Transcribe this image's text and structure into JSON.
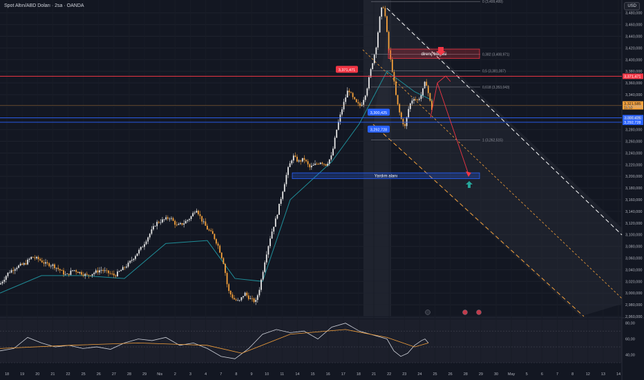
{
  "header": {
    "symbol_title": "Spot Altın/ABD Doları · 2sa · OANDA",
    "currency": "USD"
  },
  "colors": {
    "background": "#131722",
    "candle_up": "#e8e8e8",
    "candle_down": "#f7a23b",
    "ma_line": "#1f8f9a",
    "resistance_line": "#f23645",
    "support_line": "#2962ff",
    "fib_line": "#787b86",
    "rsi_line": "#d1d4dc",
    "rsi_ma": "#f7a23b"
  },
  "chart_data": {
    "type": "candlestick",
    "instrument": "Spot Altın/ABD Doları",
    "timeframe": "2sa",
    "x_tick_labels": [
      "18",
      "19",
      "20",
      "21",
      "22",
      "25",
      "26",
      "27",
      "28",
      "29",
      "Nis",
      "2",
      "3",
      "4",
      "7",
      "8",
      "9",
      "10",
      "11",
      "14",
      "15",
      "16",
      "17",
      "18",
      "21",
      "22",
      "23",
      "24",
      "25",
      "26",
      "28",
      "29",
      "30",
      "May",
      "5",
      "6",
      "7",
      "8",
      "12",
      "13",
      "14"
    ],
    "y_tick_labels": [
      "3,480,000",
      "3,460,000",
      "3,440,000",
      "3,420,000",
      "3,400,000",
      "3,380,000",
      "3,360,000",
      "3,340,000",
      "3,320,000",
      "3,300,000",
      "3,280,000",
      "3,260,000",
      "3,240,000",
      "3,220,000",
      "3,200,000",
      "3,180,000",
      "3,160,000",
      "3,140,000",
      "3,120,000",
      "3,100,000",
      "3,080,000",
      "3,060,000",
      "3,040,000",
      "3,020,000",
      "3,000,000",
      "2,980,000",
      "2,960,000"
    ],
    "ylim": [
      2960,
      3495
    ],
    "price_path": [
      [
        0,
        3015
      ],
      [
        12,
        3035
      ],
      [
        24,
        3045
      ],
      [
        36,
        3050
      ],
      [
        46,
        3062
      ],
      [
        56,
        3058
      ],
      [
        66,
        3050
      ],
      [
        76,
        3048
      ],
      [
        86,
        3040
      ],
      [
        96,
        3030
      ],
      [
        106,
        3040
      ],
      [
        116,
        3035
      ],
      [
        126,
        3030
      ],
      [
        136,
        3035
      ],
      [
        146,
        3040
      ],
      [
        156,
        3035
      ],
      [
        166,
        3030
      ],
      [
        176,
        3040
      ],
      [
        186,
        3050
      ],
      [
        196,
        3065
      ],
      [
        206,
        3080
      ],
      [
        216,
        3100
      ],
      [
        226,
        3120
      ],
      [
        236,
        3125
      ],
      [
        246,
        3130
      ],
      [
        256,
        3115
      ],
      [
        266,
        3120
      ],
      [
        276,
        3130
      ],
      [
        284,
        3145
      ],
      [
        292,
        3125
      ],
      [
        300,
        3110
      ],
      [
        308,
        3100
      ],
      [
        316,
        3080
      ],
      [
        324,
        3050
      ],
      [
        330,
        3005
      ],
      [
        338,
        2990
      ],
      [
        346,
        2985
      ],
      [
        354,
        3000
      ],
      [
        362,
        2990
      ],
      [
        370,
        2985
      ],
      [
        376,
        3010
      ],
      [
        384,
        3060
      ],
      [
        392,
        3100
      ],
      [
        400,
        3130
      ],
      [
        408,
        3170
      ],
      [
        416,
        3210
      ],
      [
        424,
        3235
      ],
      [
        432,
        3225
      ],
      [
        440,
        3230
      ],
      [
        448,
        3215
      ],
      [
        456,
        3220
      ],
      [
        464,
        3225
      ],
      [
        472,
        3220
      ],
      [
        480,
        3235
      ],
      [
        488,
        3285
      ],
      [
        496,
        3320
      ],
      [
        504,
        3350
      ],
      [
        510,
        3335
      ],
      [
        516,
        3325
      ],
      [
        522,
        3320
      ],
      [
        530,
        3345
      ],
      [
        538,
        3390
      ],
      [
        544,
        3420
      ],
      [
        550,
        3475
      ],
      [
        554,
        3496
      ],
      [
        558,
        3470
      ],
      [
        562,
        3420
      ],
      [
        568,
        3380
      ],
      [
        574,
        3330
      ],
      [
        580,
        3300
      ],
      [
        586,
        3285
      ],
      [
        592,
        3320
      ],
      [
        598,
        3335
      ],
      [
        604,
        3330
      ],
      [
        610,
        3340
      ],
      [
        616,
        3365
      ],
      [
        622,
        3330
      ],
      [
        626,
        3310
      ]
    ],
    "moving_average": [
      [
        0,
        3000
      ],
      [
        60,
        3030
      ],
      [
        120,
        3030
      ],
      [
        180,
        3025
      ],
      [
        240,
        3085
      ],
      [
        300,
        3090
      ],
      [
        340,
        3025
      ],
      [
        380,
        3020
      ],
      [
        420,
        3160
      ],
      [
        480,
        3225
      ],
      [
        520,
        3290
      ],
      [
        560,
        3380
      ],
      [
        600,
        3345
      ],
      [
        626,
        3330
      ]
    ],
    "horizontal_levels": [
      {
        "price": 3371.471,
        "label": "3,371,471",
        "color": "#f23645"
      },
      {
        "price": 3300.425,
        "label": "3,300,425",
        "color": "#2962ff"
      },
      {
        "price": 3292.728,
        "label": "3,292,728",
        "color": "#2962ff"
      }
    ],
    "current_price": {
      "label": "3,321,585",
      "countdown": "15:59",
      "price": 3321.585
    },
    "fibonacci": [
      {
        "ratio_label": "0 (3,499,499)",
        "price": 3499.499
      },
      {
        "ratio_label": "0,382 (3,408,971)",
        "price": 3408.971
      },
      {
        "ratio_label": "0,5 (3,381,007)",
        "price": 3381.007
      },
      {
        "ratio_label": "0,618 (3,353,043)",
        "price": 3353.043
      },
      {
        "ratio_label": "1 (3,262,515)",
        "price": 3262.515
      }
    ],
    "zones": [
      {
        "label": "direnç bölgesi",
        "price_top": 3418,
        "price_bottom": 3402,
        "color": "#f23645"
      },
      {
        "label": "Yardım alanı",
        "price_top": 3206,
        "price_bottom": 3196,
        "color": "#2962ff"
      }
    ],
    "rsi": {
      "y_tick_labels": [
        "80,00",
        "60,00",
        "40,00"
      ],
      "ylim": [
        30,
        85
      ],
      "levels": [
        70,
        50,
        30
      ],
      "values": [
        [
          0,
          45
        ],
        [
          20,
          48
        ],
        [
          40,
          62
        ],
        [
          60,
          55
        ],
        [
          80,
          50
        ],
        [
          100,
          52
        ],
        [
          120,
          48
        ],
        [
          140,
          50
        ],
        [
          160,
          47
        ],
        [
          180,
          55
        ],
        [
          200,
          60
        ],
        [
          220,
          58
        ],
        [
          240,
          62
        ],
        [
          260,
          52
        ],
        [
          280,
          55
        ],
        [
          300,
          48
        ],
        [
          320,
          38
        ],
        [
          340,
          35
        ],
        [
          360,
          48
        ],
        [
          380,
          66
        ],
        [
          400,
          72
        ],
        [
          420,
          68
        ],
        [
          440,
          70
        ],
        [
          460,
          60
        ],
        [
          480,
          75
        ],
        [
          500,
          80
        ],
        [
          520,
          70
        ],
        [
          540,
          65
        ],
        [
          560,
          60
        ],
        [
          570,
          45
        ],
        [
          580,
          38
        ],
        [
          590,
          42
        ],
        [
          600,
          52
        ],
        [
          610,
          58
        ],
        [
          615,
          60
        ],
        [
          620,
          55
        ]
      ],
      "ma": [
        [
          0,
          48
        ],
        [
          100,
          52
        ],
        [
          200,
          55
        ],
        [
          300,
          52
        ],
        [
          350,
          42
        ],
        [
          420,
          66
        ],
        [
          500,
          72
        ],
        [
          560,
          62
        ],
        [
          600,
          50
        ],
        [
          620,
          55
        ]
      ]
    }
  }
}
